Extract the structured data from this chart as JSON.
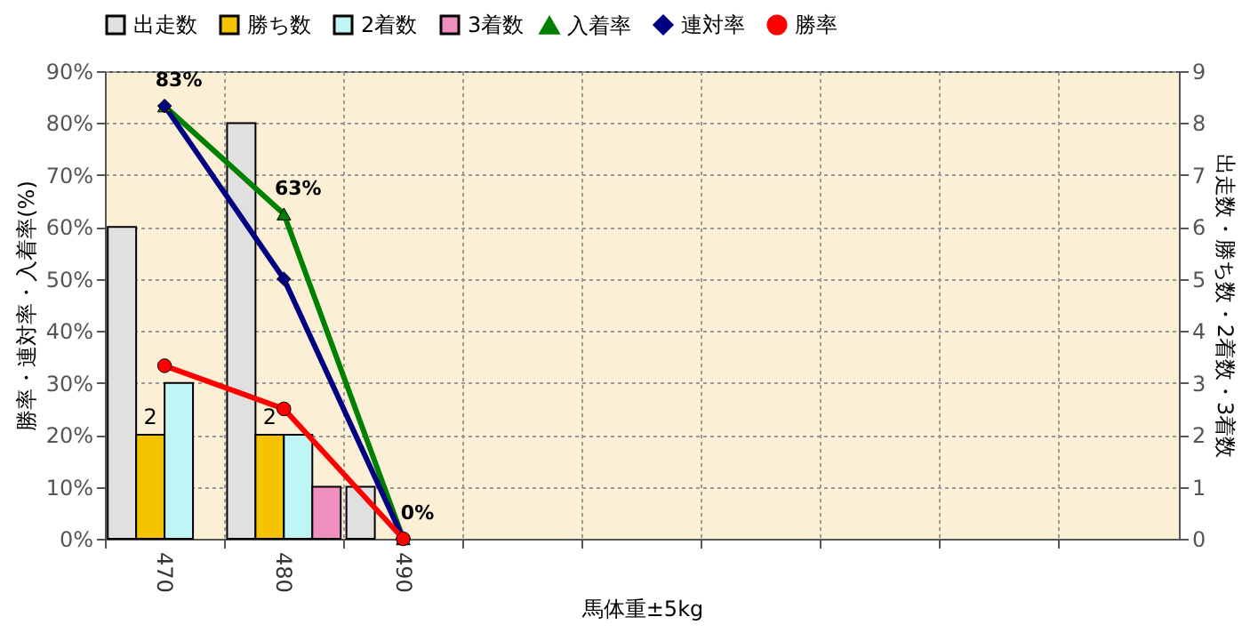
{
  "chart_data": {
    "type": "bar",
    "categories": [
      "470",
      "480",
      "490",
      null,
      null,
      null,
      null,
      null,
      null
    ],
    "xlabel": "馬体重±5kg",
    "ylabel": "勝率・連対率・入着率(%)",
    "y2label": "出走数・勝ち数・2着数・3着数",
    "ylim": [
      0,
      90
    ],
    "yticks": [
      {
        "value": 0,
        "label": "0%"
      },
      {
        "value": 10,
        "label": "10%"
      },
      {
        "value": 20,
        "label": "20%"
      },
      {
        "value": 30,
        "label": "30%"
      },
      {
        "value": 40,
        "label": "40%"
      },
      {
        "value": 50,
        "label": "50%"
      },
      {
        "value": 60,
        "label": "60%"
      },
      {
        "value": 70,
        "label": "70%"
      },
      {
        "value": 80,
        "label": "80%"
      },
      {
        "value": 90,
        "label": "90%"
      }
    ],
    "y2lim": [
      0,
      9
    ],
    "y2ticks": [
      0,
      1,
      2,
      3,
      4,
      5,
      6,
      7,
      8,
      9
    ],
    "grid": true,
    "legend": "top",
    "series": [
      {
        "name": "出走数",
        "axis": "y2",
        "color": "#e0e0e0",
        "values": [
          6,
          8,
          1,
          null,
          null,
          null,
          null,
          null,
          null
        ]
      },
      {
        "name": "勝ち数",
        "axis": "y2",
        "color": "#f5c400",
        "values": [
          2,
          2,
          0,
          null,
          null,
          null,
          null,
          null,
          null
        ],
        "value_labels": [
          "2",
          "2",
          null,
          null,
          null,
          null,
          null,
          null,
          null
        ]
      },
      {
        "name": "2着数",
        "axis": "y2",
        "color": "#c0f5f5",
        "values": [
          3,
          2,
          0,
          null,
          null,
          null,
          null,
          null,
          null
        ]
      },
      {
        "name": "3着数",
        "axis": "y2",
        "color": "#f090c0",
        "values": [
          0,
          1,
          0,
          null,
          null,
          null,
          null,
          null,
          null
        ]
      },
      {
        "name": "入着率",
        "type": "line",
        "color": "#008000",
        "marker": "triangle",
        "values": [
          83.3,
          62.5,
          0,
          null,
          null,
          null,
          null,
          null,
          null
        ],
        "value_labels": [
          "83%",
          "63%",
          "0%",
          null,
          null,
          null,
          null,
          null,
          null
        ]
      },
      {
        "name": "連対率",
        "type": "line",
        "color": "#000080",
        "marker": "diamond",
        "values": [
          83.3,
          50,
          0,
          null,
          null,
          null,
          null,
          null,
          null
        ]
      },
      {
        "name": "勝率",
        "type": "line",
        "color": "#ff0000",
        "marker": "circle",
        "values": [
          33.3,
          25,
          0,
          null,
          null,
          null,
          null,
          null,
          null
        ]
      }
    ]
  }
}
